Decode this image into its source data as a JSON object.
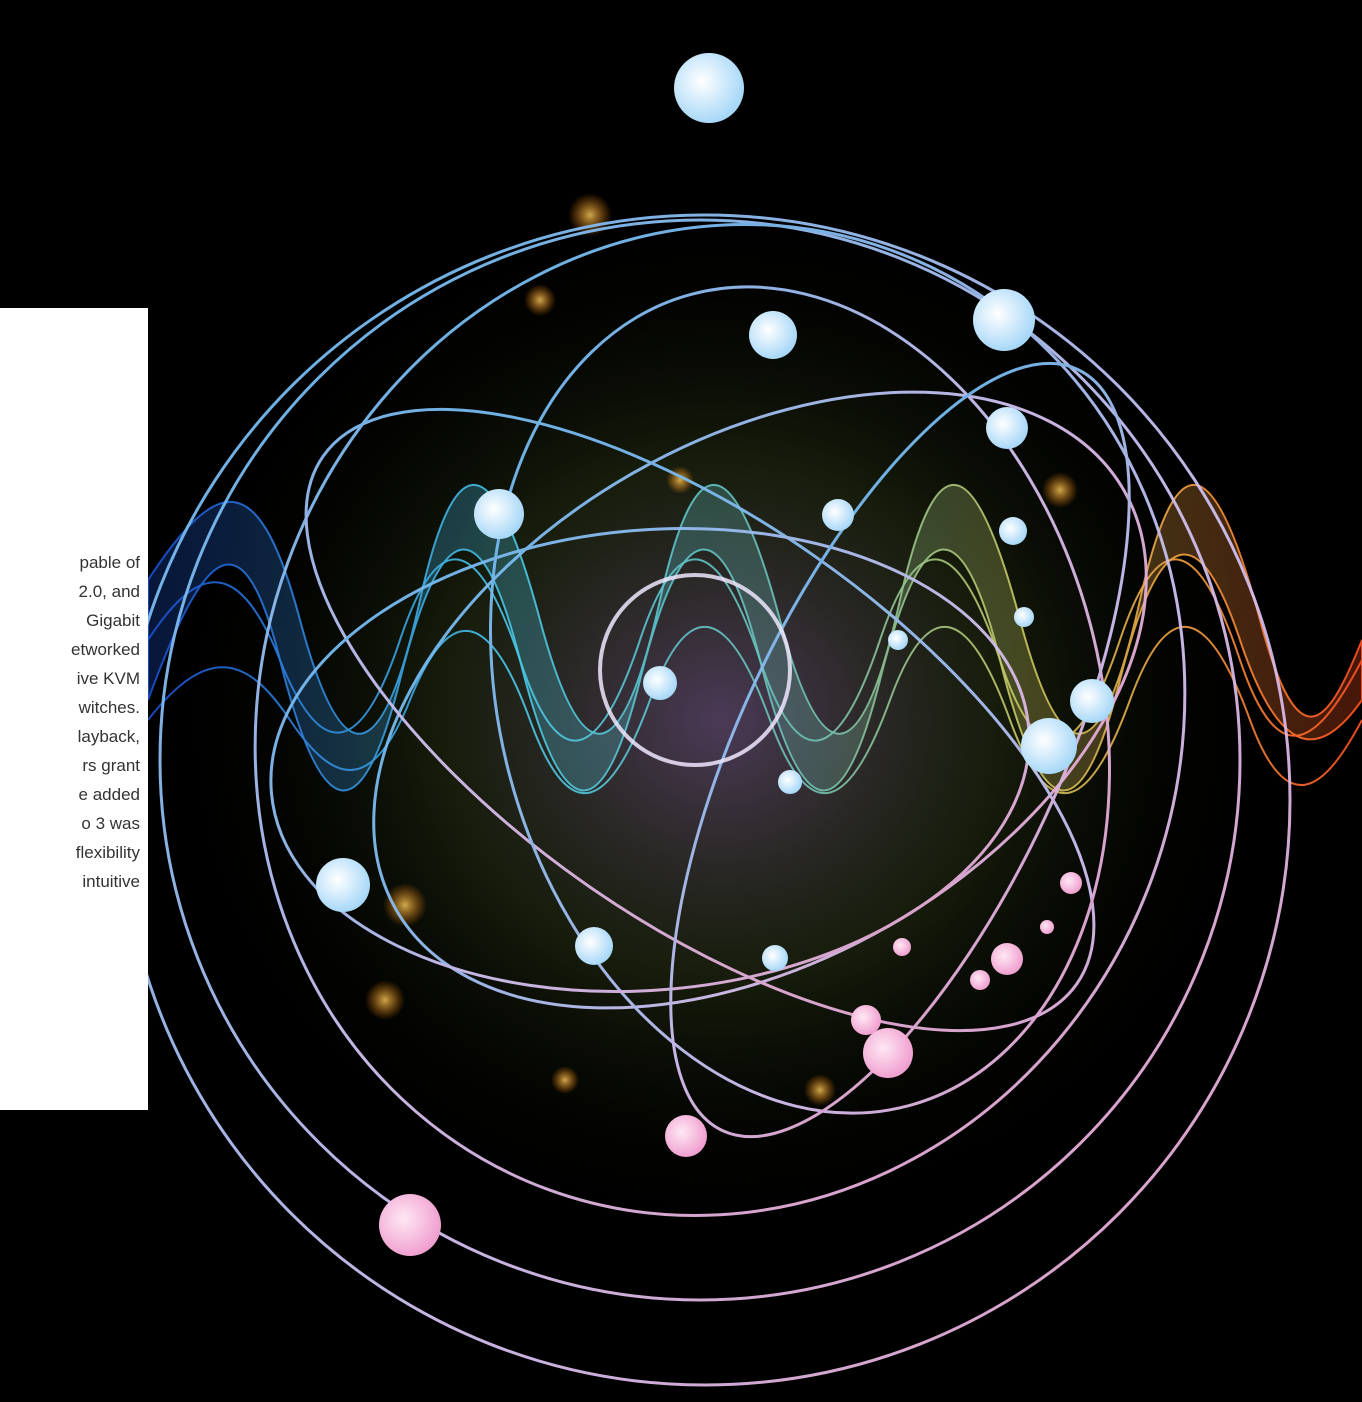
{
  "panel": {
    "lines": [
      "pable of",
      "2.0, and",
      "Gigabit",
      "etworked",
      "ive KVM",
      "witches.",
      "layback,",
      "rs grant",
      "e added",
      "o 3 was",
      "flexibility",
      "intuitive"
    ]
  }
}
